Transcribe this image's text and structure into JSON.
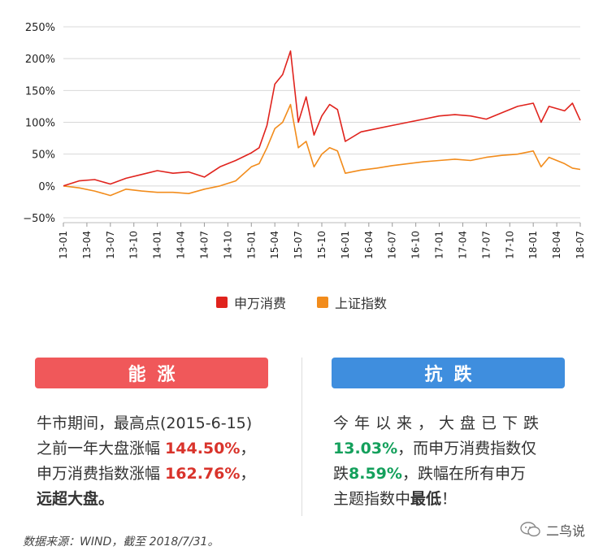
{
  "chart_data": {
    "type": "line",
    "ylim": [
      -50,
      250
    ],
    "y_ticks": [
      "250%",
      "200%",
      "150%",
      "100%",
      "50%",
      "0%",
      "−50%"
    ],
    "y_tick_values": [
      250,
      200,
      150,
      100,
      50,
      0,
      -50
    ],
    "x_range": [
      "2013-01",
      "2018-07"
    ],
    "x_ticks": [
      "13-01",
      "13-04",
      "13-07",
      "13-10",
      "14-01",
      "14-04",
      "14-07",
      "14-10",
      "15-01",
      "15-04",
      "15-07",
      "15-10",
      "16-01",
      "16-04",
      "16-07",
      "16-10",
      "17-01",
      "17-04",
      "17-07",
      "17-10",
      "18-01",
      "18-04",
      "18-07"
    ],
    "grid": "horizontal",
    "legend_placement": "bottom-center",
    "x": [
      "2013-01",
      "2013-03",
      "2013-05",
      "2013-07",
      "2013-09",
      "2013-11",
      "2014-01",
      "2014-03",
      "2014-05",
      "2014-07",
      "2014-09",
      "2014-11",
      "2015-01",
      "2015-02",
      "2015-03",
      "2015-04",
      "2015-05",
      "2015-06",
      "2015-07",
      "2015-08",
      "2015-09",
      "2015-10",
      "2015-11",
      "2015-12",
      "2016-01",
      "2016-03",
      "2016-05",
      "2016-07",
      "2016-09",
      "2016-11",
      "2017-01",
      "2017-03",
      "2017-05",
      "2017-07",
      "2017-09",
      "2017-11",
      "2018-01",
      "2018-02",
      "2018-03",
      "2018-05",
      "2018-06",
      "2018-07"
    ],
    "series": [
      {
        "name": "申万消费",
        "color": "#e0231d",
        "values": [
          0,
          8,
          10,
          3,
          12,
          18,
          24,
          20,
          22,
          14,
          30,
          40,
          52,
          60,
          95,
          160,
          175,
          212,
          100,
          140,
          80,
          110,
          128,
          120,
          70,
          85,
          90,
          95,
          100,
          105,
          110,
          112,
          110,
          105,
          115,
          125,
          130,
          100,
          125,
          118,
          130,
          103
        ]
      },
      {
        "name": "上证指数",
        "color": "#f28c1c",
        "values": [
          0,
          -3,
          -8,
          -15,
          -5,
          -8,
          -10,
          -10,
          -12,
          -5,
          0,
          8,
          30,
          35,
          60,
          90,
          100,
          128,
          60,
          70,
          30,
          50,
          60,
          55,
          20,
          25,
          28,
          32,
          35,
          38,
          40,
          42,
          40,
          45,
          48,
          50,
          55,
          30,
          45,
          35,
          28,
          26
        ]
      }
    ]
  },
  "legend": [
    {
      "label": "申万消费",
      "color": "#e0231d"
    },
    {
      "label": "上证指数",
      "color": "#f28c1c"
    }
  ],
  "left_panel": {
    "title": "能涨",
    "line1": "牛市期间，最高点(2015-6-15)",
    "line2_pre": "之前一年大盘涨幅 ",
    "line2_val": "144.50%",
    "line2_post": "，",
    "line3_pre": "申万消费指数涨幅 ",
    "line3_val": "162.76%",
    "line3_post": "，",
    "line4": "远超大盘。"
  },
  "right_panel": {
    "title": "抗跌",
    "line1": "今年以来，大盘已下跌",
    "line2_val": "13.03%",
    "line2_post": "，而申万消费指数仅",
    "line3_pre": "跌",
    "line3_val": "8.59%",
    "line3_post": "，跌幅在所有申万",
    "line4_pre": "主题指数中",
    "line4_bold": "最低",
    "line4_post": "！"
  },
  "source": "数据来源：WIND，截至 2018/7/31。",
  "watermark": "二鸟说"
}
